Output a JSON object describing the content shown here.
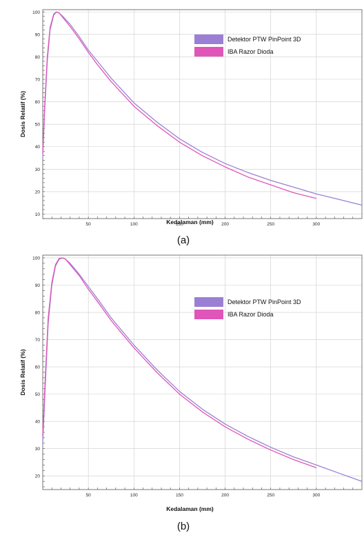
{
  "chart_data": [
    {
      "type": "line",
      "caption": "(a)",
      "xlabel": "Kedalaman (mm)",
      "ylabel": "Dosis Relatif (%)",
      "xlim": [
        0,
        350
      ],
      "ylim": [
        8,
        101
      ],
      "xticks": [
        50,
        100,
        150,
        200,
        250,
        300
      ],
      "yticks": [
        10,
        20,
        30,
        40,
        50,
        60,
        70,
        80,
        90,
        100
      ],
      "grid": true,
      "legend_position": "top-right",
      "series": [
        {
          "name": "Detektor PTW PinPoint 3D",
          "color": "#9b7fd4",
          "x": [
            0,
            2,
            5,
            8,
            12,
            15,
            18,
            22,
            30,
            40,
            50,
            60,
            75,
            100,
            125,
            150,
            175,
            200,
            225,
            250,
            275,
            300,
            325,
            350
          ],
          "y": [
            35,
            55,
            78,
            92,
            98.5,
            100,
            99.5,
            98,
            94.5,
            89,
            83,
            78,
            70.5,
            59.5,
            51,
            43.5,
            37.5,
            32.5,
            28.5,
            25,
            22,
            19,
            16.5,
            14
          ]
        },
        {
          "name": "IBA Razor Dioda",
          "color": "#e055b8",
          "x": [
            0,
            2,
            5,
            8,
            12,
            15,
            18,
            22,
            30,
            40,
            50,
            60,
            75,
            100,
            125,
            150,
            175,
            200,
            225,
            250,
            275,
            300
          ],
          "y": [
            37,
            57,
            80,
            93,
            99,
            100,
            99.5,
            97.5,
            93.5,
            88,
            82,
            76.5,
            69,
            58,
            49.5,
            42,
            36,
            31,
            26.5,
            23,
            19.5,
            17
          ]
        }
      ]
    },
    {
      "type": "line",
      "caption": "(b)",
      "xlabel": "Kedalaman (mm)",
      "ylabel": "Dosis Relatif (%)",
      "xlim": [
        0,
        350
      ],
      "ylim": [
        15,
        101
      ],
      "xticks": [
        50,
        100,
        150,
        200,
        250,
        300
      ],
      "yticks": [
        20,
        30,
        40,
        50,
        60,
        70,
        80,
        90,
        100
      ],
      "grid": true,
      "legend_position": "top-right",
      "series": [
        {
          "name": "Detektor PTW PinPoint 3D",
          "color": "#9b7fd4",
          "x": [
            0,
            3,
            6,
            10,
            14,
            18,
            22,
            25,
            30,
            40,
            50,
            60,
            75,
            100,
            125,
            150,
            175,
            200,
            225,
            250,
            275,
            300,
            325,
            350
          ],
          "y": [
            32,
            55,
            76,
            90,
            97,
            99.5,
            100,
            99.5,
            98,
            94,
            89.5,
            85,
            78,
            68,
            59,
            51,
            44.5,
            39,
            34.5,
            30.5,
            27,
            24,
            21,
            18
          ]
        },
        {
          "name": "IBA Razor Dioda",
          "color": "#e055b8",
          "x": [
            0,
            3,
            6,
            10,
            14,
            18,
            22,
            25,
            30,
            40,
            50,
            60,
            75,
            100,
            125,
            150,
            175,
            200,
            225,
            250,
            275,
            300
          ],
          "y": [
            35,
            58,
            78,
            91,
            97.5,
            99.8,
            100,
            99.5,
            97.5,
            93.5,
            88.5,
            84,
            77,
            67,
            58,
            50,
            43.5,
            38,
            33.5,
            29.5,
            26,
            23
          ]
        }
      ]
    }
  ]
}
